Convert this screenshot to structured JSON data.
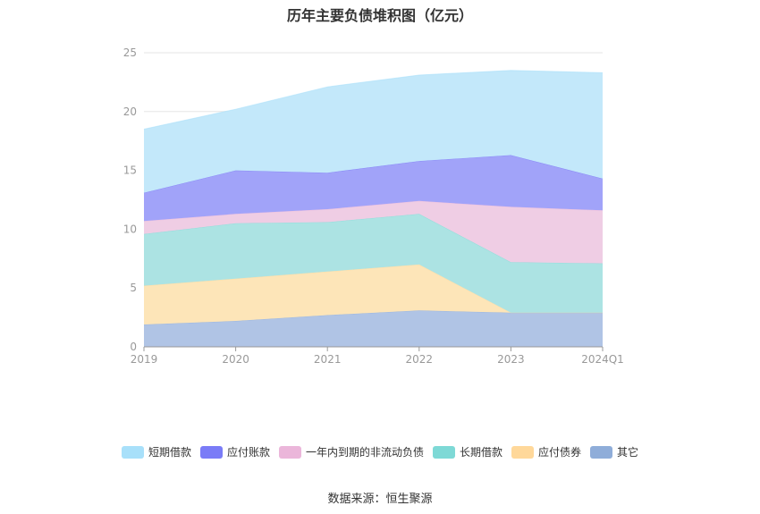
{
  "chart_data": {
    "type": "area",
    "stacked": true,
    "title": "历年主要负债堆积图（亿元）",
    "categories": [
      "2019",
      "2020",
      "2021",
      "2022",
      "2023",
      "2024Q1"
    ],
    "ylim": [
      0,
      25
    ],
    "yticks": [
      0,
      5,
      10,
      15,
      20,
      25
    ],
    "grid": true,
    "legend_position": "bottom",
    "series": [
      {
        "name": "其它",
        "color": "#8fadd9",
        "fill": "#b0c4e5",
        "values": [
          1.9,
          2.2,
          2.7,
          3.1,
          2.9,
          2.9
        ]
      },
      {
        "name": "应付债券",
        "color": "#ffd89a",
        "fill": "#fde5b8",
        "values": [
          3.3,
          3.6,
          3.7,
          3.9,
          0.0,
          0.0
        ]
      },
      {
        "name": "长期借款",
        "color": "#7ed9d6",
        "fill": "#ace3e3",
        "values": [
          4.4,
          4.7,
          4.2,
          4.3,
          4.3,
          4.2
        ]
      },
      {
        "name": "一年内到期的非流动负债",
        "color": "#ebb6da",
        "fill": "#efcde4",
        "values": [
          1.1,
          0.8,
          1.1,
          1.1,
          4.7,
          4.5
        ]
      },
      {
        "name": "应付账款",
        "color": "#7a7cf7",
        "fill": "#a1a3f9",
        "values": [
          2.4,
          3.7,
          3.1,
          3.4,
          4.4,
          2.7
        ]
      },
      {
        "name": "短期借款",
        "color": "#a8e0fa",
        "fill": "#c3e8fa",
        "values": [
          5.4,
          5.2,
          7.3,
          7.3,
          7.2,
          9.0
        ]
      }
    ],
    "legend_order": [
      "短期借款",
      "应付账款",
      "一年内到期的非流动负债",
      "长期借款",
      "应付债券",
      "其它"
    ]
  },
  "source_text": "数据来源：恒生聚源"
}
